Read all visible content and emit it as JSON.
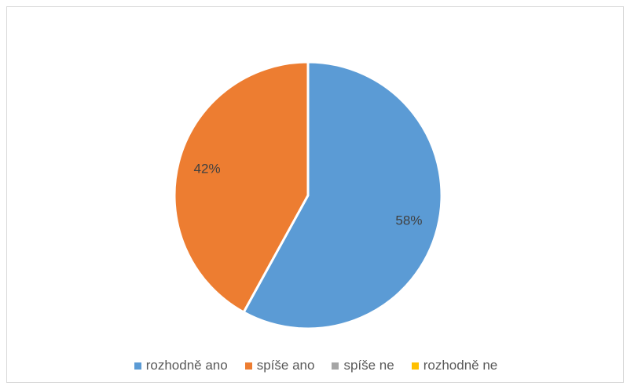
{
  "chart_data": {
    "type": "pie",
    "title": "",
    "categories": [
      "rozhodně ano",
      "spíše ano",
      "spíše ne",
      "rozhodně ne"
    ],
    "values": [
      58,
      42,
      0,
      0
    ],
    "data_labels": [
      "58%",
      "42%",
      "",
      ""
    ],
    "colors": [
      "#5b9bd5",
      "#ed7d31",
      "#a5a5a5",
      "#ffc000"
    ],
    "legend_position": "bottom"
  }
}
